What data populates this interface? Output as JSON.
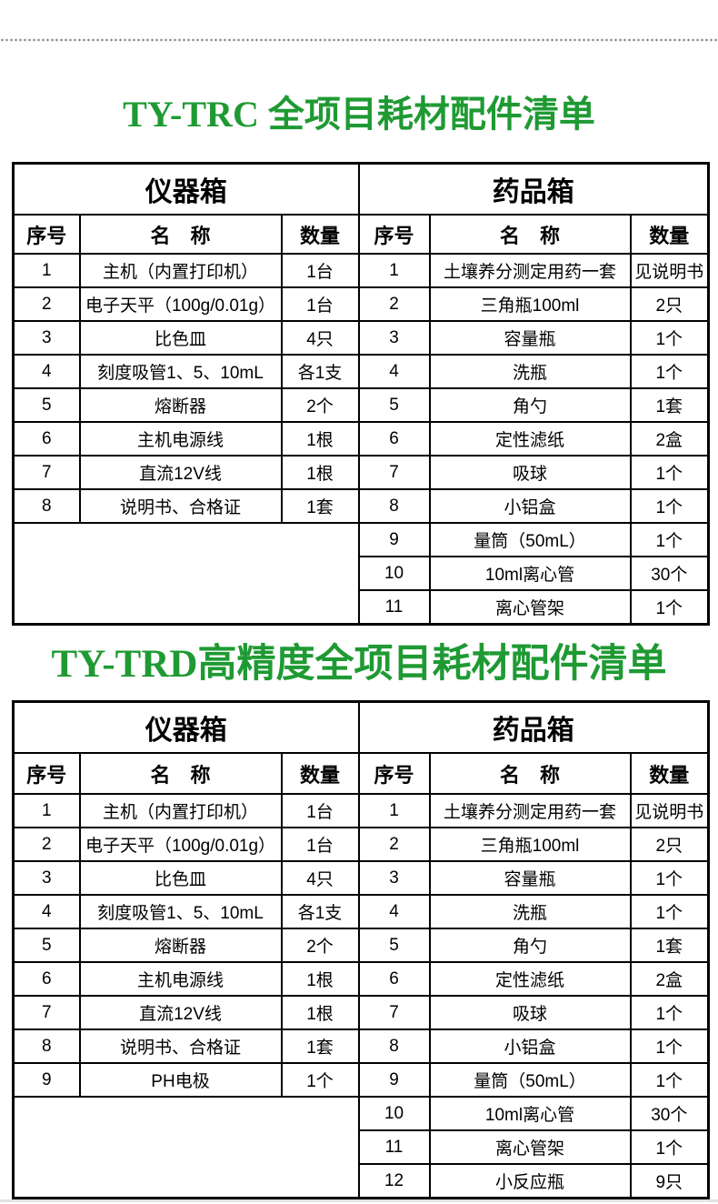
{
  "page": {
    "accent_green": "#1f9a33",
    "border_color": "#000000",
    "dotted_line_color": "#8a8a8a"
  },
  "sections": [
    {
      "title": "TY-TRC 全项目耗材配件清单",
      "table": {
        "left": {
          "title": "仪器箱",
          "headers": [
            "序号",
            "名　称",
            "数量"
          ],
          "rows": [
            [
              "1",
              "主机（内置打印机）",
              "1台"
            ],
            [
              "2",
              "电子天平（100g/0.01g）",
              "1台"
            ],
            [
              "3",
              "比色皿",
              "4只"
            ],
            [
              "4",
              "刻度吸管1、5、10mL",
              "各1支"
            ],
            [
              "5",
              "熔断器",
              "2个"
            ],
            [
              "6",
              "主机电源线",
              "1根"
            ],
            [
              "7",
              "直流12V线",
              "1根"
            ],
            [
              "8",
              "说明书、合格证",
              "1套"
            ]
          ]
        },
        "right": {
          "title": "药品箱",
          "headers": [
            "序号",
            "名　称",
            "数量"
          ],
          "rows": [
            [
              "1",
              "土壤养分测定用药一套",
              "见说明书"
            ],
            [
              "2",
              "三角瓶100ml",
              "2只"
            ],
            [
              "3",
              "容量瓶",
              "1个"
            ],
            [
              "4",
              "洗瓶",
              "1个"
            ],
            [
              "5",
              "角勺",
              "1套"
            ],
            [
              "6",
              "定性滤纸",
              "2盒"
            ],
            [
              "7",
              "吸球",
              "1个"
            ],
            [
              "8",
              "小铝盒",
              "1个"
            ],
            [
              "9",
              "量筒（50mL）",
              "1个"
            ],
            [
              "10",
              "10ml离心管",
              "30个"
            ],
            [
              "11",
              "离心管架",
              "1个"
            ]
          ]
        }
      }
    },
    {
      "title": "TY-TRD高精度全项目耗材配件清单",
      "table": {
        "left": {
          "title": "仪器箱",
          "headers": [
            "序号",
            "名　称",
            "数量"
          ],
          "rows": [
            [
              "1",
              "主机（内置打印机）",
              "1台"
            ],
            [
              "2",
              "电子天平（100g/0.01g）",
              "1台"
            ],
            [
              "3",
              "比色皿",
              "4只"
            ],
            [
              "4",
              "刻度吸管1、5、10mL",
              "各1支"
            ],
            [
              "5",
              "熔断器",
              "2个"
            ],
            [
              "6",
              "主机电源线",
              "1根"
            ],
            [
              "7",
              "直流12V线",
              "1根"
            ],
            [
              "8",
              "说明书、合格证",
              "1套"
            ],
            [
              "9",
              "PH电极",
              "1个"
            ]
          ]
        },
        "right": {
          "title": "药品箱",
          "headers": [
            "序号",
            "名　称",
            "数量"
          ],
          "rows": [
            [
              "1",
              "土壤养分测定用药一套",
              "见说明书"
            ],
            [
              "2",
              "三角瓶100ml",
              "2只"
            ],
            [
              "3",
              "容量瓶",
              "1个"
            ],
            [
              "4",
              "洗瓶",
              "1个"
            ],
            [
              "5",
              "角勺",
              "1套"
            ],
            [
              "6",
              "定性滤纸",
              "2盒"
            ],
            [
              "7",
              "吸球",
              "1个"
            ],
            [
              "8",
              "小铝盒",
              "1个"
            ],
            [
              "9",
              "量筒（50mL）",
              "1个"
            ],
            [
              "10",
              "10ml离心管",
              "30个"
            ],
            [
              "11",
              "离心管架",
              "1个"
            ],
            [
              "12",
              "小反应瓶",
              "9只"
            ]
          ]
        }
      }
    }
  ]
}
